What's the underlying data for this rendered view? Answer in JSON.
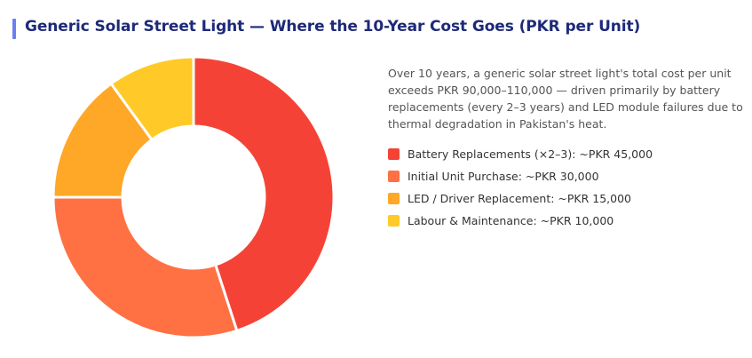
{
  "header": {
    "title": "Generic Solar Street Light — Where the 10-Year Cost Goes (PKR per Unit)",
    "accent_color": "#6b7ff0"
  },
  "description": "Over 10 years, a generic solar street light's total cost per unit exceeds PKR 90,000–110,000 — driven primarily by battery replacements (every 2–3 years) and LED module failures due to thermal degradation in Pakistan's heat.",
  "chart_data": {
    "type": "pie",
    "variant": "donut",
    "title": "Generic Solar Street Light — Where the 10-Year Cost Goes (PKR per Unit)",
    "legend_position": "right",
    "categories": [
      "Battery Replacements (×2–3)",
      "Initial Unit Purchase",
      "LED / Driver Replacement",
      "Labour & Maintenance"
    ],
    "values": [
      45000,
      30000,
      15000,
      10000
    ],
    "colors": [
      "#f44336",
      "#ff7043",
      "#ffa726",
      "#ffca28"
    ],
    "unit": "PKR"
  },
  "legend": [
    {
      "label": "Battery Replacements (×2–3): ~PKR 45,000",
      "color": "#f44336"
    },
    {
      "label": "Initial Unit Purchase: ~PKR 30,000",
      "color": "#ff7043"
    },
    {
      "label": "LED / Driver Replacement: ~PKR 15,000",
      "color": "#ffa726"
    },
    {
      "label": "Labour & Maintenance: ~PKR 10,000",
      "color": "#ffca28"
    }
  ]
}
